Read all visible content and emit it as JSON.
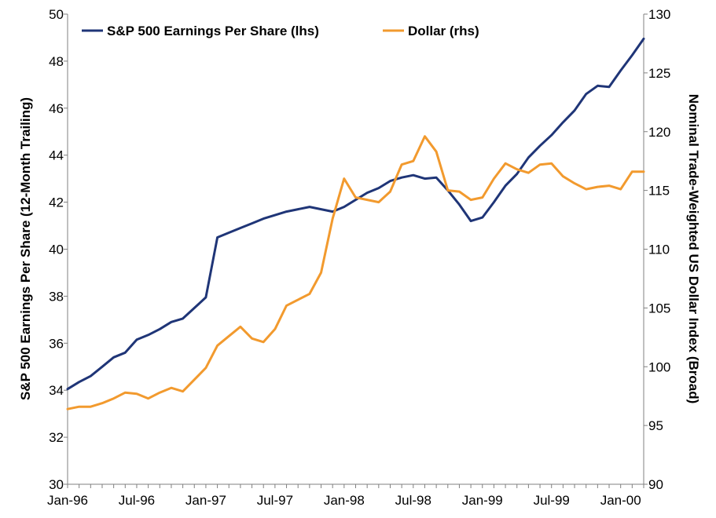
{
  "chart_data": {
    "type": "line",
    "x": [
      "Jan-96",
      "Feb-96",
      "Mar-96",
      "Apr-96",
      "May-96",
      "Jun-96",
      "Jul-96",
      "Aug-96",
      "Sep-96",
      "Oct-96",
      "Nov-96",
      "Dec-96",
      "Jan-97",
      "Feb-97",
      "Mar-97",
      "Apr-97",
      "May-97",
      "Jun-97",
      "Jul-97",
      "Aug-97",
      "Sep-97",
      "Oct-97",
      "Nov-97",
      "Dec-97",
      "Jan-98",
      "Feb-98",
      "Mar-98",
      "Apr-98",
      "May-98",
      "Jun-98",
      "Jul-98",
      "Aug-98",
      "Sep-98",
      "Oct-98",
      "Nov-98",
      "Dec-98",
      "Jan-99",
      "Feb-99",
      "Mar-99",
      "Apr-99",
      "May-99",
      "Jun-99",
      "Jul-99",
      "Aug-99",
      "Sep-99",
      "Oct-99",
      "Nov-99",
      "Dec-99",
      "Jan-00",
      "Feb-00",
      "Mar-00"
    ],
    "x_tick_labels": [
      "Jan-96",
      "Jul-96",
      "Jan-97",
      "Jul-97",
      "Jan-98",
      "Jul-98",
      "Jan-99",
      "Jul-99",
      "Jan-00"
    ],
    "series": [
      {
        "name": "S&P 500 Earnings Per Share (lhs)",
        "axis": "left",
        "color": "#1f3577",
        "values": [
          34.05,
          34.35,
          34.6,
          35.0,
          35.4,
          35.6,
          36.15,
          36.35,
          36.6,
          36.9,
          37.05,
          37.5,
          37.95,
          40.5,
          40.7,
          40.9,
          41.1,
          41.3,
          41.45,
          41.6,
          41.7,
          41.8,
          41.7,
          41.6,
          41.8,
          42.1,
          42.4,
          42.6,
          42.9,
          43.05,
          43.15,
          43.0,
          43.05,
          42.5,
          41.9,
          41.2,
          41.35,
          42.0,
          42.7,
          43.2,
          43.9,
          44.4,
          44.85,
          45.4,
          45.9,
          46.6,
          46.95,
          46.9,
          47.6,
          48.25,
          48.95
        ]
      },
      {
        "name": "Dollar (rhs)",
        "axis": "right",
        "color": "#f29a2e",
        "values": [
          96.4,
          96.6,
          96.6,
          96.9,
          97.3,
          97.8,
          97.7,
          97.3,
          97.8,
          98.2,
          97.9,
          98.9,
          99.9,
          101.8,
          102.6,
          103.4,
          102.4,
          102.1,
          103.2,
          105.2,
          105.7,
          106.2,
          108.0,
          112.6,
          116.0,
          114.4,
          114.2,
          114.0,
          114.9,
          117.2,
          117.5,
          119.6,
          118.3,
          115.0,
          114.9,
          114.2,
          114.4,
          116.0,
          117.3,
          116.8,
          116.5,
          117.2,
          117.3,
          116.2,
          115.6,
          115.1,
          115.3,
          115.4,
          115.1,
          116.6,
          116.6
        ]
      }
    ],
    "yleft": {
      "label": "S&P 500 Earnings Per Share (12-Month Trailing)",
      "lim": [
        30,
        50
      ],
      "ticks": [
        30,
        32,
        34,
        36,
        38,
        40,
        42,
        44,
        46,
        48,
        50
      ]
    },
    "yright": {
      "label": "Nominal Trade-Weighted US Dollar Index (Broad)",
      "lim": [
        90,
        130
      ],
      "ticks": [
        90,
        95,
        100,
        105,
        110,
        115,
        120,
        125,
        130
      ]
    },
    "grid": false,
    "legend_position": "top-left"
  }
}
